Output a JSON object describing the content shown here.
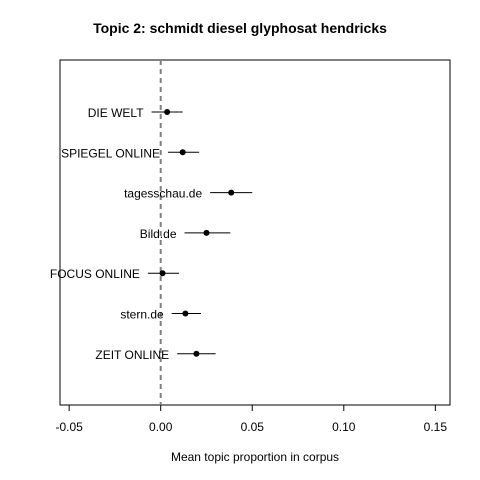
{
  "chart_data": {
    "type": "scatter",
    "title": "Topic 2: schmidt diesel glyphosat hendricks",
    "xlabel": "Mean topic proportion in corpus",
    "ylabel": "",
    "xlim": [
      -0.055,
      0.158
    ],
    "xticks": [
      -0.05,
      0.0,
      0.05,
      0.1,
      0.15
    ],
    "xtick_labels": [
      "-0.05",
      "0.00",
      "0.05",
      "0.10",
      "0.15"
    ],
    "reference_line": 0.0,
    "grid": false,
    "legend": "none",
    "points": [
      {
        "label": "DIE WELT",
        "estimate": 0.0035,
        "lower": -0.005,
        "upper": 0.012
      },
      {
        "label": "SPIEGEL ONLINE",
        "estimate": 0.012,
        "lower": 0.004,
        "upper": 0.021
      },
      {
        "label": "tagesschau.de",
        "estimate": 0.0385,
        "lower": 0.027,
        "upper": 0.05
      },
      {
        "label": "Bild.de",
        "estimate": 0.025,
        "lower": 0.013,
        "upper": 0.038
      },
      {
        "label": "FOCUS ONLINE",
        "estimate": 0.001,
        "lower": -0.007,
        "upper": 0.01
      },
      {
        "label": "stern.de",
        "estimate": 0.0135,
        "lower": 0.006,
        "upper": 0.022
      },
      {
        "label": "ZEIT ONLINE",
        "estimate": 0.0195,
        "lower": 0.009,
        "upper": 0.03
      }
    ]
  }
}
